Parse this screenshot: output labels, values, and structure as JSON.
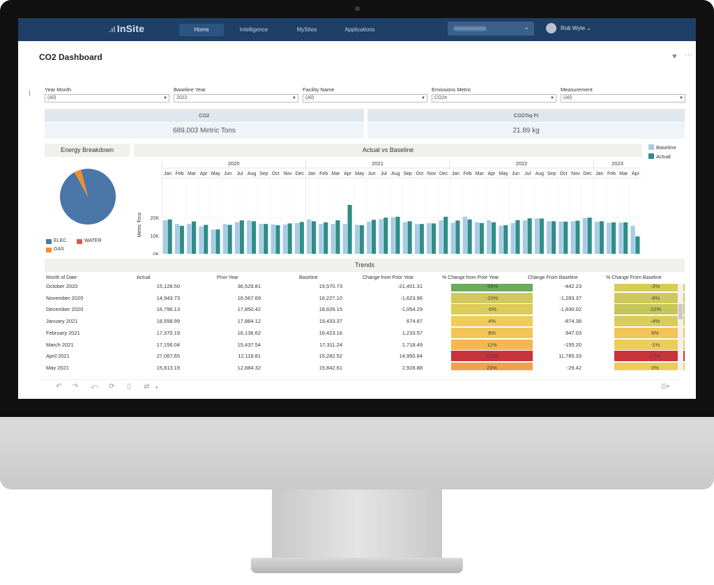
{
  "nav": {
    "logo": "InSite",
    "links": [
      "Home",
      "Intelligence",
      "MySites",
      "Applications"
    ],
    "user": "Rob Wyte"
  },
  "page": {
    "title": "CO2 Dashboard"
  },
  "filters": [
    {
      "label": "Year Month",
      "value": "(All)"
    },
    {
      "label": "Baseline Year",
      "value": "2022"
    },
    {
      "label": "Facility Name",
      "value": "(All)"
    },
    {
      "label": "Emissions Metric",
      "value": "CO2e"
    },
    {
      "label": "Measurement",
      "value": "(All)"
    }
  ],
  "kpis": [
    {
      "label": "CO2",
      "value": "689,003 Metric Tons"
    },
    {
      "label": "CO2/Sq Ft",
      "value": "21.89 kg"
    }
  ],
  "energy_breakdown": {
    "title": "Energy Breakdown",
    "legend": [
      {
        "name": "ELEC",
        "color": "#4a76a8"
      },
      {
        "name": "WATER",
        "color": "#e15759"
      },
      {
        "name": "GAS",
        "color": "#f28e2b"
      }
    ]
  },
  "colors": {
    "baseline": "#a8cbe6",
    "actual": "#2f8e87",
    "nav": "#1e3f66"
  },
  "chart_data": [
    {
      "type": "pie",
      "slices": [
        {
          "name": "ELEC",
          "value": 96
        },
        {
          "name": "GAS",
          "value": 4
        },
        {
          "name": "WATER",
          "value": 0
        }
      ]
    },
    {
      "type": "bar",
      "title": "Actual  vs Baseline",
      "ylabel": "Metric Tons",
      "ylim": [
        0,
        32000
      ],
      "yticks": [
        "0K",
        "10K",
        "20K"
      ],
      "years": [
        {
          "label": "2020",
          "months": [
            "Jan",
            "Feb",
            "Mar",
            "Apr",
            "May",
            "Jun",
            "Jul",
            "Aug",
            "Sep",
            "Oct",
            "Nov",
            "Dec"
          ]
        },
        {
          "label": "2021",
          "months": [
            "Jan",
            "Feb",
            "Mar",
            "Apr",
            "May",
            "Jun",
            "Jul",
            "Aug",
            "Sep",
            "Oct",
            "Nov",
            "Dec"
          ]
        },
        {
          "label": "2022",
          "months": [
            "Jan",
            "Feb",
            "Mar",
            "Apr",
            "May",
            "Jun",
            "Jul",
            "Aug",
            "Sep",
            "Oct",
            "Nov",
            "Dec"
          ]
        },
        {
          "label": "2023",
          "months": [
            "Jan",
            "Feb",
            "Mar",
            "Apr"
          ]
        }
      ],
      "series": [
        {
          "name": "Baseline",
          "values": [
            18500,
            16500,
            16500,
            15200,
            13500,
            16500,
            17500,
            18500,
            16500,
            16200,
            16200,
            17000,
            19000,
            16500,
            16500,
            16500,
            16000,
            17800,
            19200,
            20200,
            17500,
            16500,
            17000,
            18500,
            17200,
            20500,
            17500,
            18500,
            15500,
            17000,
            18500,
            19500,
            18000,
            17800,
            18000,
            19800,
            17700,
            17200,
            17300,
            15500
          ]
        },
        {
          "name": "Actual",
          "values": [
            19000,
            15500,
            17900,
            16000,
            13500,
            16000,
            18500,
            18000,
            16500,
            15800,
            16800,
            17600,
            18000,
            17400,
            18500,
            27067,
            15813,
            18800,
            20000,
            20500,
            18000,
            16500,
            16800,
            20500,
            18400,
            19000,
            17000,
            17400,
            15800,
            18600,
            19600,
            19500,
            18000,
            17800,
            18300,
            20000,
            18000,
            17400,
            17400,
            9600
          ]
        }
      ]
    }
  ],
  "trends": {
    "title": "Trends",
    "columns": [
      "Month of Date",
      "Actual",
      "Prior Year",
      "Baseline",
      "Change from Prior Year",
      "% Change from Prior Year",
      "Change From Baseline",
      "% Change From Baseline"
    ],
    "rows": [
      {
        "month": "October 2020",
        "actual": "15,128.50",
        "prior": "36,529.81",
        "baseline": "15,570.73",
        "chg_prior": "-21,401.31",
        "pct_prior": "-59%",
        "pct_prior_color": "#6aab5c",
        "chg_base": "-442.23",
        "pct_base": "-3%",
        "pct_base_color": "#d8cc57"
      },
      {
        "month": "November 2020",
        "actual": "14,943.73",
        "prior": "16,567.69",
        "baseline": "16,227.10",
        "chg_prior": "-1,623.96",
        "pct_prior": "-10%",
        "pct_prior_color": "#d0c85a",
        "chg_base": "-1,283.37",
        "pct_base": "-8%",
        "pct_base_color": "#cfc85b"
      },
      {
        "month": "December 2020",
        "actual": "16,796.13",
        "prior": "17,850.42",
        "baseline": "18,626.15",
        "chg_prior": "-1,054.29",
        "pct_prior": "-6%",
        "pct_prior_color": "#dccb58",
        "chg_base": "-1,830.02",
        "pct_base": "-10%",
        "pct_base_color": "#c7c65c"
      },
      {
        "month": "January 2021",
        "actual": "18,558.99",
        "prior": "17,884.12",
        "baseline": "19,433.37",
        "chg_prior": "674.87",
        "pct_prior": "4%",
        "pct_prior_color": "#f0cc5a",
        "chg_base": "-874.38",
        "pct_base": "-4%",
        "pct_base_color": "#d9cc58"
      },
      {
        "month": "February 2021",
        "actual": "17,370.19",
        "prior": "16,136.62",
        "baseline": "16,423.16",
        "chg_prior": "1,233.57",
        "pct_prior": "8%",
        "pct_prior_color": "#f4c457",
        "chg_base": "947.03",
        "pct_base": "6%",
        "pct_base_color": "#f3c456"
      },
      {
        "month": "March 2021",
        "actual": "17,156.04",
        "prior": "15,437.54",
        "baseline": "17,311.24",
        "chg_prior": "1,718.49",
        "pct_prior": "11%",
        "pct_prior_color": "#f4b852",
        "chg_base": "-155.20",
        "pct_base": "-1%",
        "pct_base_color": "#e9ce5a"
      },
      {
        "month": "April 2021",
        "actual": "27,067.65",
        "prior": "12,116.81",
        "baseline": "15,282.52",
        "chg_prior": "14,950.84",
        "pct_prior": "123%",
        "pct_prior_color": "#c8323a",
        "chg_base": "11,785.33",
        "pct_base": "77%",
        "pct_base_color": "#c8323a"
      },
      {
        "month": "May 2021",
        "actual": "15,813.19",
        "prior": "12,884.32",
        "baseline": "15,842.61",
        "chg_prior": "2,928.88",
        "pct_prior": "23%",
        "pct_prior_color": "#f2a24d",
        "chg_base": "-29.42",
        "pct_base": "0%",
        "pct_base_color": "#eccd5a"
      }
    ]
  }
}
